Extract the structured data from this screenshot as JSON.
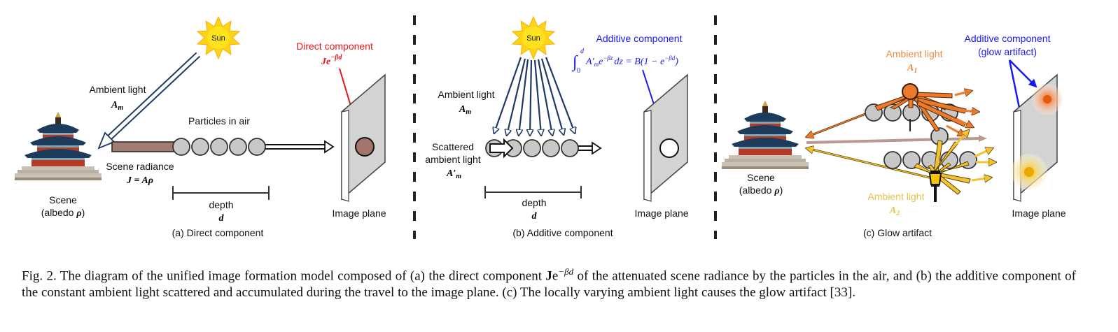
{
  "colors": {
    "direct_label": "#e8161b",
    "additive_label": "#1a1aee",
    "ambient1_label": "#e98a45",
    "ambient2_label": "#e8c14a",
    "dark_navy": "#1f3864",
    "sun": "#ffd21a",
    "particle": "#c8c8c8",
    "plane": "#d3d3d3",
    "direct_spot": "#a3756b",
    "radiance_bar": "#a07c72"
  },
  "icons": [
    "sun-icon",
    "temple-icon",
    "lantern-icon",
    "particle-icon"
  ],
  "panel_a": {
    "sun": "Sun",
    "ambient_light": "Ambient light",
    "ambient_symbol": "A",
    "ambient_sub": "m",
    "particles": "Particles in air",
    "scene_radiance": "Scene radiance",
    "radiance_eq": "J = Aρ",
    "scene": "Scene",
    "albedo_pre": "(albedo ",
    "albedo_rho": "ρ",
    "albedo_post": ")",
    "depth": "depth",
    "depth_symbol": "d",
    "direct_title": "Direct component",
    "direct_expr_j": "Je",
    "direct_expr_exp": "−βd",
    "image_plane": "Image plane",
    "caption": "(a) Direct component"
  },
  "panel_b": {
    "sun": "Sun",
    "ambient_light": "Ambient light",
    "ambient_symbol": "A",
    "ambient_sub": "m",
    "scattered_1": "Scattered",
    "scattered_2": "ambient light",
    "scattered_symbol": "A′",
    "scattered_sub": "m",
    "additive_title": "Additive component",
    "int_upper": "d",
    "int_lower": "0",
    "integrand": "A′",
    "integrand_sub": "m",
    "integrand_e": "e",
    "integrand_exp": "−βz",
    "integrand_rest": "dz = B(1 − e",
    "integrand_exp2": "−βd",
    "integrand_close": ")",
    "depth": "depth",
    "depth_symbol": "d",
    "image_plane": "Image plane",
    "caption": "(b) Additive component"
  },
  "panel_c": {
    "ambient1": "Ambient light",
    "ambient1_symbol": "A",
    "ambient1_sub": "1",
    "ambient2": "Ambient light",
    "ambient2_symbol": "A",
    "ambient2_sub": "2",
    "additive_title_1": "Additive component",
    "additive_title_2": "(glow artifact)",
    "scene": "Scene",
    "albedo_pre": "(albedo ",
    "albedo_rho": "ρ",
    "albedo_post": ")",
    "image_plane": "Image plane",
    "caption": "(c) Glow artifact"
  },
  "figure_caption": {
    "p1": "Fig. 2.  The diagram of the unified image formation model composed of (a) the direct component ",
    "bold_j": "J",
    "e": "e",
    "exp": "−βd",
    "p2": " of the attenuated scene radiance by the particles in the air, and (b) the additive component of the constant ambient light scattered and accumulated during the travel to the image plane. (c) The locally varying ambient light causes the glow artifact [33]."
  }
}
